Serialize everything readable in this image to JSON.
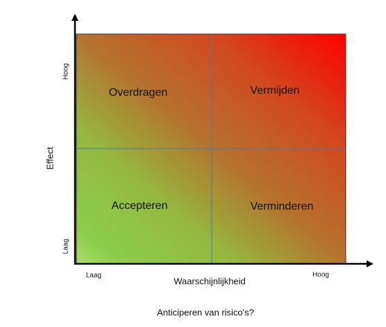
{
  "axes": {
    "y": {
      "label": "Effect",
      "high": "Hoog",
      "low": "Laag"
    },
    "x": {
      "label": "Waarschijnlijkheid",
      "low": "Laag",
      "high": "Hoog"
    }
  },
  "quadrants": [
    {
      "label": "Overdragen"
    },
    {
      "label": "Vermijden"
    },
    {
      "label": "Accepteren"
    },
    {
      "label": "Verminderen"
    }
  ],
  "caption": "Anticiperen van risico's?"
}
